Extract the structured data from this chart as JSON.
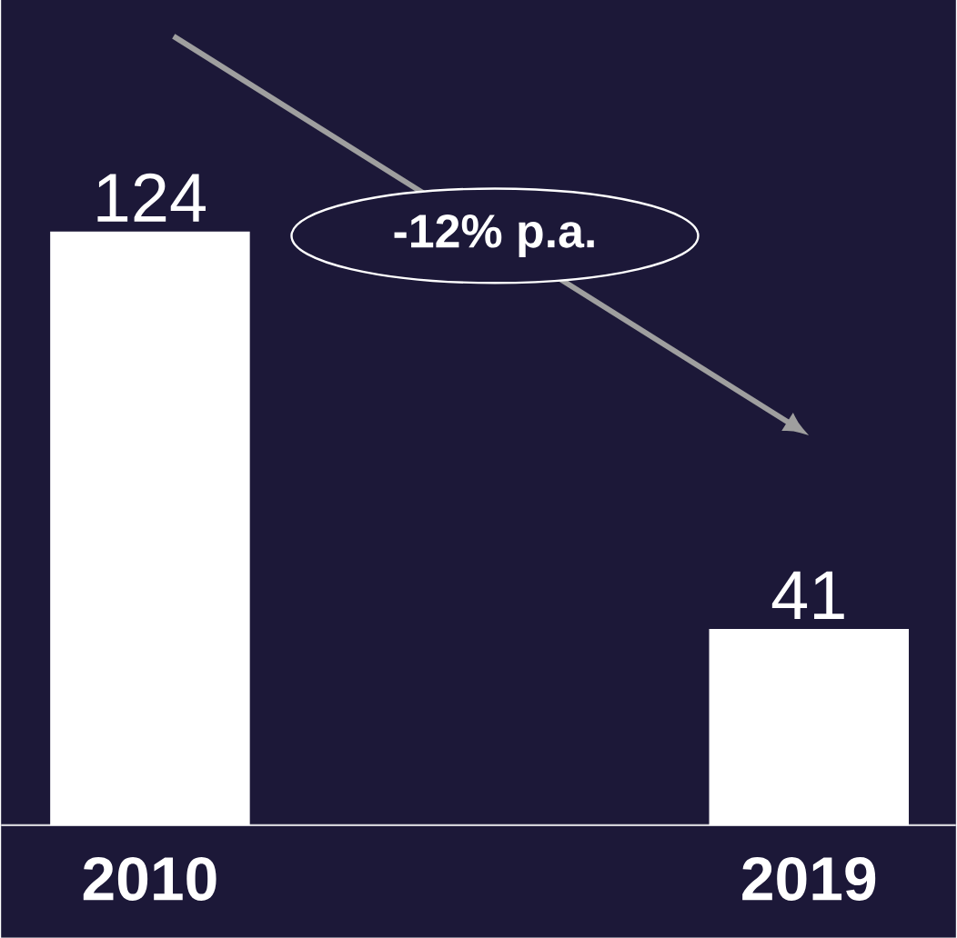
{
  "chart_data": {
    "type": "bar",
    "categories": [
      "2010",
      "2019"
    ],
    "values": [
      124,
      41
    ],
    "color": "#ffffff",
    "data_labels": true,
    "annotations": [
      "-12% p.a."
    ]
  }
}
